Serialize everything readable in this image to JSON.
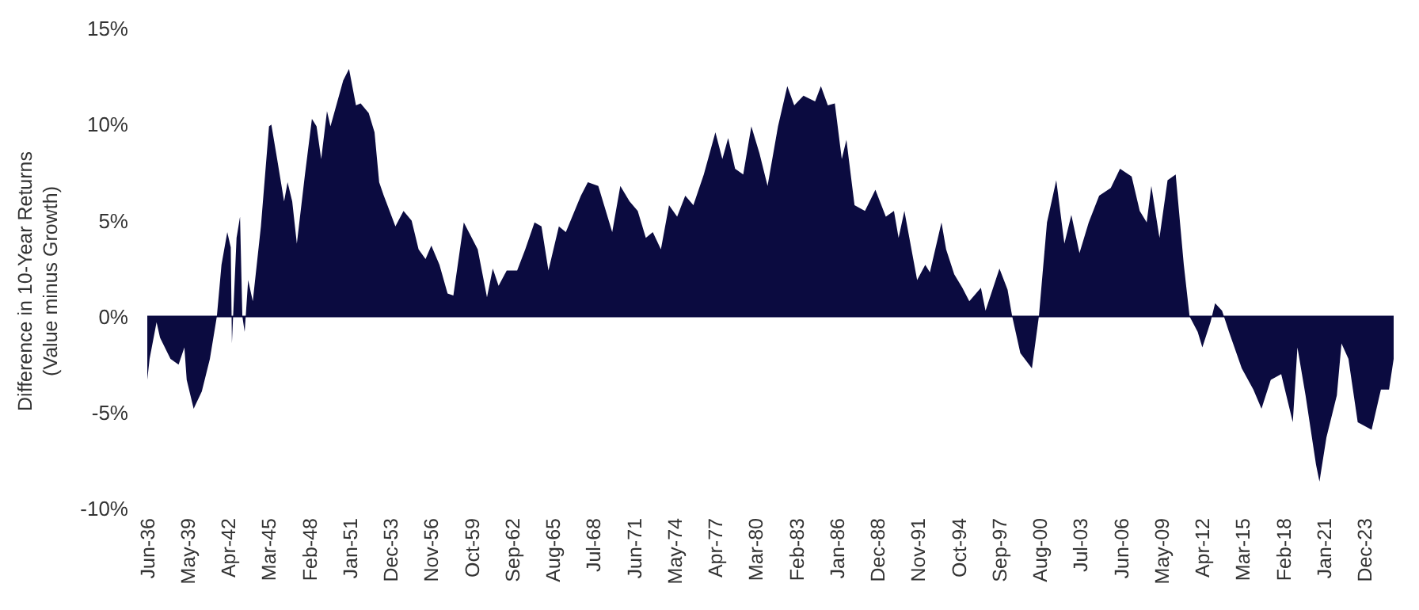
{
  "chart_data": {
    "type": "area",
    "ylabel": "Difference in 10-Year Returns\n(Value minus Growth)",
    "xlim": [
      "1936-06",
      "2026-01"
    ],
    "ylim": [
      -10,
      15
    ],
    "yticks": [
      {
        "value": -10,
        "label": "-10%"
      },
      {
        "value": -5,
        "label": "-5%"
      },
      {
        "value": 0,
        "label": "0%"
      },
      {
        "value": 5,
        "label": "5%"
      },
      {
        "value": 10,
        "label": "10%"
      },
      {
        "value": 15,
        "label": "15%"
      }
    ],
    "xticks": [
      {
        "value": "1936-06",
        "label": "Jun-36"
      },
      {
        "value": "1939-05",
        "label": "May-39"
      },
      {
        "value": "1942-04",
        "label": "Apr-42"
      },
      {
        "value": "1945-03",
        "label": "Mar-45"
      },
      {
        "value": "1948-02",
        "label": "Feb-48"
      },
      {
        "value": "1951-01",
        "label": "Jan-51"
      },
      {
        "value": "1953-12",
        "label": "Dec-53"
      },
      {
        "value": "1956-11",
        "label": "Nov-56"
      },
      {
        "value": "1959-10",
        "label": "Oct-59"
      },
      {
        "value": "1962-09",
        "label": "Sep-62"
      },
      {
        "value": "1965-08",
        "label": "Aug-65"
      },
      {
        "value": "1968-07",
        "label": "Jul-68"
      },
      {
        "value": "1971-06",
        "label": "Jun-71"
      },
      {
        "value": "1974-05",
        "label": "May-74"
      },
      {
        "value": "1977-04",
        "label": "Apr-77"
      },
      {
        "value": "1980-03",
        "label": "Mar-80"
      },
      {
        "value": "1983-02",
        "label": "Feb-83"
      },
      {
        "value": "1986-01",
        "label": "Jan-86"
      },
      {
        "value": "1988-12",
        "label": "Dec-88"
      },
      {
        "value": "1991-11",
        "label": "Nov-91"
      },
      {
        "value": "1994-10",
        "label": "Oct-94"
      },
      {
        "value": "1997-09",
        "label": "Sep-97"
      },
      {
        "value": "2000-08",
        "label": "Aug-00"
      },
      {
        "value": "2003-07",
        "label": "Jul-03"
      },
      {
        "value": "2006-06",
        "label": "Jun-06"
      },
      {
        "value": "2009-05",
        "label": "May-09"
      },
      {
        "value": "2012-04",
        "label": "Apr-12"
      },
      {
        "value": "2015-03",
        "label": "Mar-15"
      },
      {
        "value": "2018-02",
        "label": "Feb-18"
      },
      {
        "value": "2021-01",
        "label": "Jan-21"
      },
      {
        "value": "2023-12",
        "label": "Dec-23"
      }
    ],
    "series": [
      {
        "color": "#0b0b40",
        "x": [
          "1936-06",
          "1936-08",
          "1937-02",
          "1937-05",
          "1938-02",
          "1938-09",
          "1939-02",
          "1939-04",
          "1939-10",
          "1940-05",
          "1940-12",
          "1941-06",
          "1941-10",
          "1942-03",
          "1942-06",
          "1942-07",
          "1942-11",
          "1943-02",
          "1943-04",
          "1943-06",
          "1943-09",
          "1944-01",
          "1944-08",
          "1945-03",
          "1945-05",
          "1945-10",
          "1946-04",
          "1946-07",
          "1946-11",
          "1947-03",
          "1947-10",
          "1948-04",
          "1948-08",
          "1948-12",
          "1949-05",
          "1949-08",
          "1950-07",
          "1950-12",
          "1951-06",
          "1951-10",
          "1952-05",
          "1952-10",
          "1953-02",
          "1953-06",
          "1954-04",
          "1954-11",
          "1955-06",
          "1955-12",
          "1956-06",
          "1956-11",
          "1957-06",
          "1958-01",
          "1958-06",
          "1959-03",
          "1960-03",
          "1960-11",
          "1961-04",
          "1961-09",
          "1962-04",
          "1963-01",
          "1963-08",
          "1964-04",
          "1964-10",
          "1965-04",
          "1966-01",
          "1966-07",
          "1967-08",
          "1968-02",
          "1968-11",
          "1969-11",
          "1970-06",
          "1971-02",
          "1971-09",
          "1972-04",
          "1972-10",
          "1973-05",
          "1973-12",
          "1974-07",
          "1975-02",
          "1975-09",
          "1976-06",
          "1977-04",
          "1977-10",
          "1978-03",
          "1978-09",
          "1979-04",
          "1979-11",
          "1980-06",
          "1981-01",
          "1981-10",
          "1982-06",
          "1982-12",
          "1983-08",
          "1984-06",
          "1984-11",
          "1985-05",
          "1985-11",
          "1986-05",
          "1986-09",
          "1987-04",
          "1988-01",
          "1988-10",
          "1989-07",
          "1990-02",
          "1990-06",
          "1990-11",
          "1991-10",
          "1992-05",
          "1992-09",
          "1993-07",
          "1993-11",
          "1994-06",
          "1995-01",
          "1995-07",
          "1996-05",
          "1996-09",
          "1997-09",
          "1998-04",
          "1998-08",
          "1999-03",
          "2000-01",
          "2000-07",
          "2001-02",
          "2001-10",
          "2002-05",
          "2002-11",
          "2003-06",
          "2004-02",
          "2004-11",
          "2005-09",
          "2006-05",
          "2007-03",
          "2007-10",
          "2008-04",
          "2008-08",
          "2009-03",
          "2009-10",
          "2010-05",
          "2010-12",
          "2011-05",
          "2011-12",
          "2012-04",
          "2012-11",
          "2013-03",
          "2013-09",
          "2014-03",
          "2015-02",
          "2015-12",
          "2016-07",
          "2017-03",
          "2017-12",
          "2018-10",
          "2019-02",
          "2019-09",
          "2020-06",
          "2020-09",
          "2021-03",
          "2021-12",
          "2022-04",
          "2022-10",
          "2023-06",
          "2024-06",
          "2025-02",
          "2025-09",
          "2026-01"
        ],
        "values": [
          -3.3,
          -2.2,
          -0.3,
          -1.1,
          -2.2,
          -2.5,
          -1.6,
          -3.3,
          -4.8,
          -3.9,
          -2.2,
          0,
          2.7,
          4.4,
          3.6,
          -1.4,
          4.1,
          5.2,
          0,
          -0.8,
          1.9,
          0.8,
          4.7,
          9.9,
          10,
          8.2,
          6,
          7,
          6,
          3.8,
          7.4,
          10.3,
          9.9,
          8.2,
          10.7,
          9.9,
          12.3,
          12.9,
          11,
          11.1,
          10.6,
          9.6,
          7,
          6.3,
          4.7,
          5.5,
          5,
          3.5,
          3,
          3.7,
          2.7,
          1.2,
          1.1,
          4.9,
          3.5,
          1,
          2.5,
          1.6,
          2.4,
          2.4,
          3.5,
          4.9,
          4.7,
          2.4,
          4.7,
          4.4,
          6.3,
          7,
          6.8,
          4.4,
          6.8,
          6,
          5.5,
          4.1,
          4.4,
          3.5,
          5.8,
          5.2,
          6.3,
          5.8,
          7.4,
          9.6,
          8.2,
          9.3,
          7.7,
          7.4,
          9.9,
          8.5,
          6.8,
          9.9,
          12,
          11,
          11.5,
          11.2,
          12,
          11,
          11.1,
          8.2,
          9.2,
          5.8,
          5.5,
          6.6,
          5.2,
          5.5,
          4.1,
          5.5,
          1.9,
          2.7,
          2.3,
          4.9,
          3.5,
          2.2,
          1.5,
          0.8,
          1.5,
          0.3,
          2.5,
          1.4,
          0,
          -1.9,
          -2.7,
          0,
          4.9,
          7.1,
          3.8,
          5.3,
          3.3,
          4.9,
          6.3,
          6.7,
          7.7,
          7.3,
          5.5,
          4.9,
          6.8,
          4.1,
          7.1,
          7.4,
          2.7,
          0,
          -0.8,
          -1.6,
          -0.3,
          0.7,
          0.3,
          -0.8,
          -2.7,
          -3.8,
          -4.8,
          -3.3,
          -3,
          -5.5,
          -1.6,
          -4.1,
          -7.7,
          -8.6,
          -6.3,
          -4.1,
          -1.4,
          -2.2,
          -5.5,
          -5.9,
          -3.8,
          -3.8,
          -2.2
        ]
      }
    ]
  }
}
